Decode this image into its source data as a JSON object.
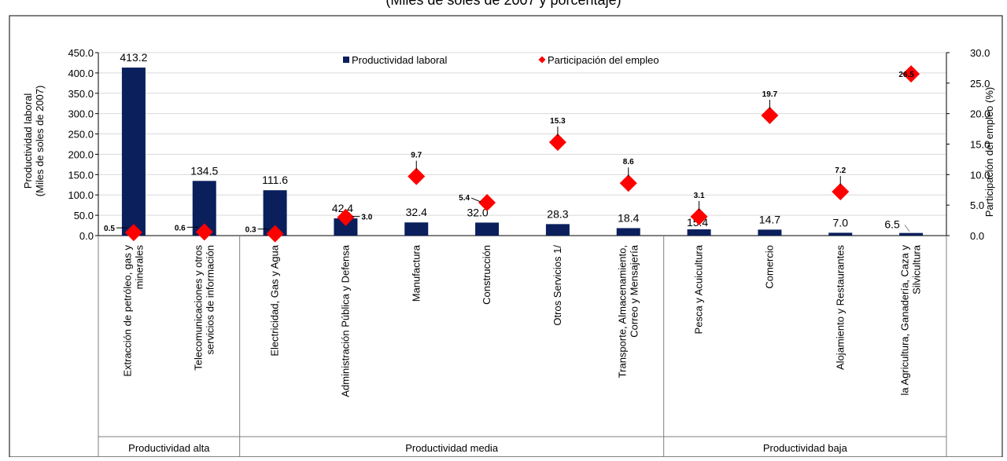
{
  "header": {
    "partial_title": "(Miles de soles de 2007 y porcentaje)"
  },
  "chart_data": {
    "type": "bar",
    "title": "(Miles de soles de 2007 y porcentaje)",
    "categories": [
      "Extracción de petróleo, gas y minerales",
      "Telecomunicaciones y otros servicios de información",
      "Electricidad, Gas y Agua",
      "Administración Pública y Defensa",
      "Manufactura",
      "Construcción",
      "Otros Servicios 1/",
      "Transporte, Almacenamiento, Correo y Mensajería",
      "Pesca y Acuicultura",
      "Comercio",
      "Alojamiento y Restaurantes",
      "la Agricultura, Ganadería, Caza y Silvicultura"
    ],
    "category_lines": [
      [
        "Extracción de petróleo, gas y",
        "minerales"
      ],
      [
        "Telecomunicaciones y otros",
        "servicios de información"
      ],
      [
        "Electricidad, Gas y Agua"
      ],
      [
        "Administración Pública y Defensa"
      ],
      [
        "Manufactura"
      ],
      [
        "Construcción"
      ],
      [
        "Otros Servicios 1/"
      ],
      [
        "Transporte, Almacenamiento,",
        "Correo y Mensajería"
      ],
      [
        "Pesca y Acuicultura"
      ],
      [
        "Comercio"
      ],
      [
        "Alojamiento y Restaurantes"
      ],
      [
        "la Agricultura, Ganadería, Caza y",
        "Silvicultura"
      ]
    ],
    "groups": [
      {
        "label": "Productividad alta",
        "count": 2
      },
      {
        "label": "Productividad media",
        "count": 6
      },
      {
        "label": "Productividad baja",
        "count": 4
      }
    ],
    "series": [
      {
        "name": "Productividad laboral",
        "kind": "bar",
        "axis": "left",
        "color": "#0a1f5c",
        "values": [
          413.2,
          134.5,
          111.6,
          42.4,
          32.4,
          32.0,
          28.3,
          18.4,
          15.4,
          14.7,
          7.0,
          6.5
        ],
        "labels": [
          "413.2",
          "134.5",
          "111.6",
          "42.4",
          "32.4",
          "32.0",
          "28.3",
          "18.4",
          "15.4",
          "14.7",
          "7.0",
          "6.5"
        ]
      },
      {
        "name": "Participación del empleo",
        "kind": "scatter",
        "axis": "right",
        "color": "#ff0000",
        "values": [
          0.5,
          0.6,
          0.3,
          3.0,
          9.7,
          5.4,
          15.3,
          8.6,
          3.1,
          19.7,
          7.2,
          26.5
        ],
        "labels": [
          "0.5",
          "0.6",
          "0.3",
          "3.0",
          "9.7",
          "5.4",
          "15.3",
          "8.6",
          "3.1",
          "19.7",
          "7.2",
          "26.5"
        ]
      }
    ],
    "y_left": {
      "label_lines": [
        "Productividad laboral",
        "(Miles de soles de 2007)"
      ],
      "ylim": [
        0,
        450
      ],
      "ticks": [
        "0.0",
        "50.0",
        "100.0",
        "150.0",
        "200.0",
        "250.0",
        "300.0",
        "350.0",
        "400.0",
        "450.0"
      ]
    },
    "y_right": {
      "label": "Participación del empleo (%)",
      "ylim": [
        0,
        30
      ],
      "ticks": [
        "0.0",
        "5.0",
        "10.0",
        "15.0",
        "20.0",
        "25.0",
        "30.0"
      ]
    },
    "legend_position": "top-center",
    "grid": true
  }
}
